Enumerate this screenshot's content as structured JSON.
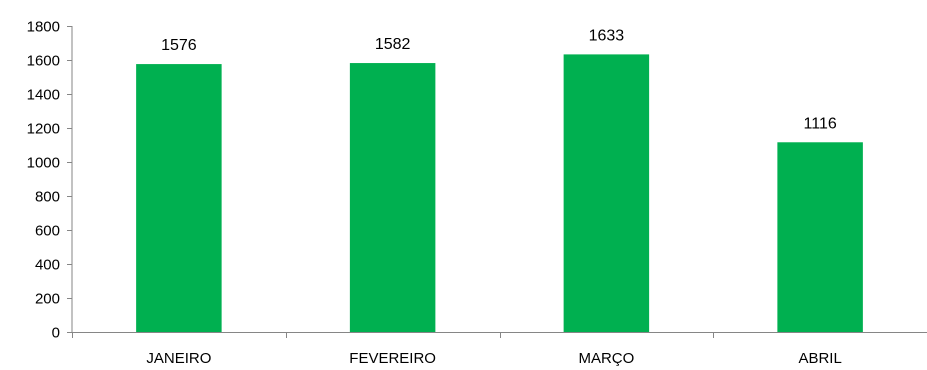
{
  "chart_data": {
    "type": "bar",
    "categories": [
      "JANEIRO",
      "FEVEREIRO",
      "MARÇO",
      "ABRIL"
    ],
    "values": [
      1576,
      1582,
      1633,
      1116
    ],
    "data_labels": [
      "1576",
      "1582",
      "1633",
      "1116"
    ],
    "title": "",
    "xlabel": "",
    "ylabel": "",
    "ylim": [
      0,
      1800
    ],
    "yticks": [
      0,
      200,
      400,
      600,
      800,
      1000,
      1200,
      1400,
      1600,
      1800
    ],
    "ytick_labels": [
      "0",
      "200",
      "400",
      "600",
      "800",
      "1000",
      "1200",
      "1400",
      "1600",
      "1800"
    ],
    "grid": false,
    "legend": "none",
    "bar_color": "#00b050",
    "axis_color": "#868686"
  }
}
